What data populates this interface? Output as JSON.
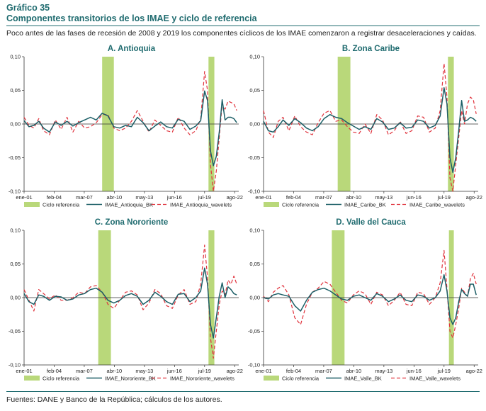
{
  "header": {
    "chart_number": "Gráfico 35",
    "title": "Componentes transitorios de los IMAE y ciclo de referencia",
    "subtitle": "Poco antes de las fases de recesión de 2008 y 2019 los componentes cíclicos de los IMAE comenzaron a registrar desaceleraciones y caídas."
  },
  "footer": {
    "source": "Fuentes: DANE y Banco de la República; cálculos de los autores."
  },
  "colors": {
    "accent": "#1f6b6f",
    "bk_line": "#1b5e66",
    "wavelets_line": "#e0323c",
    "recession_band": "#b9d87a"
  },
  "chart_data": [
    {
      "type": "line",
      "title": "A. Antioquia",
      "x_range": [
        2001,
        2023
      ],
      "xticks": [
        2001,
        2004.083,
        2007.167,
        2010.25,
        2013.333,
        2016.417,
        2019.5,
        2022.583
      ],
      "xtick_labels": [
        "ene-01",
        "feb-04",
        "mar-07",
        "abr-10",
        "may-13",
        "jun-16",
        "jul-19",
        "ago-22"
      ],
      "ylim": [
        -0.1,
        0.1
      ],
      "yticks": [
        -0.1,
        -0.05,
        0.0,
        0.05,
        0.1
      ],
      "ytick_labels": [
        "-0,10",
        "-0,05",
        "0,00",
        "0,05",
        "0,10"
      ],
      "bands": [
        [
          2009.0,
          2010.2
        ],
        [
          2019.9,
          2020.5
        ]
      ],
      "legend": [
        "Ciclo referencia",
        "IMAE_Antioquia_BK",
        "IMAE_Antioquia_wavelets"
      ],
      "series": [
        {
          "name": "IMAE_Antioquia_BK",
          "x": [
            2001.0,
            2001.5,
            2002.0,
            2002.5,
            2003.0,
            2003.6,
            2004.2,
            2004.8,
            2005.4,
            2006.0,
            2006.6,
            2007.2,
            2007.8,
            2008.4,
            2009.0,
            2009.6,
            2010.2,
            2010.8,
            2011.4,
            2012.0,
            2012.6,
            2013.2,
            2013.8,
            2014.4,
            2015.0,
            2015.6,
            2016.2,
            2016.8,
            2017.4,
            2018.0,
            2018.6,
            2019.1,
            2019.5,
            2019.8,
            2020.1,
            2020.4,
            2020.7,
            2021.0,
            2021.3,
            2021.6,
            2021.9,
            2022.2,
            2022.5,
            2022.8
          ],
          "y": [
            0.005,
            -0.004,
            -0.002,
            0.004,
            -0.006,
            -0.012,
            0.003,
            -0.002,
            0.004,
            -0.003,
            0.002,
            0.006,
            0.01,
            0.006,
            0.016,
            0.012,
            -0.004,
            -0.006,
            -0.002,
            -0.004,
            0.01,
            0.002,
            -0.01,
            -0.003,
            0.003,
            -0.004,
            -0.006,
            0.007,
            0.004,
            -0.008,
            -0.003,
            0.005,
            0.049,
            0.035,
            -0.04,
            -0.062,
            -0.048,
            -0.012,
            0.036,
            0.006,
            0.01,
            0.01,
            0.008,
            0.002
          ]
        },
        {
          "name": "IMAE_Antioquia_wavelets",
          "x": [
            2001.0,
            2001.5,
            2002.0,
            2002.5,
            2003.0,
            2003.6,
            2004.2,
            2004.8,
            2005.4,
            2006.0,
            2006.6,
            2007.2,
            2007.8,
            2008.4,
            2009.0,
            2009.6,
            2010.2,
            2010.8,
            2011.4,
            2012.0,
            2012.6,
            2013.2,
            2013.8,
            2014.4,
            2015.0,
            2015.6,
            2016.2,
            2016.8,
            2017.4,
            2018.0,
            2018.6,
            2019.1,
            2019.5,
            2019.8,
            2020.1,
            2020.4,
            2020.7,
            2021.0,
            2021.3,
            2021.6,
            2021.9,
            2022.2,
            2022.5,
            2022.8
          ],
          "y": [
            0.01,
            -0.002,
            -0.006,
            0.008,
            -0.01,
            -0.016,
            0.006,
            -0.008,
            0.01,
            -0.012,
            0.004,
            -0.006,
            -0.004,
            0.002,
            0.014,
            0.014,
            -0.006,
            -0.01,
            -0.006,
            0.004,
            0.02,
            0.004,
            -0.012,
            0.006,
            -0.002,
            -0.01,
            -0.012,
            0.01,
            -0.006,
            -0.016,
            -0.01,
            0.008,
            0.078,
            0.05,
            -0.06,
            -0.1,
            -0.07,
            -0.02,
            0.03,
            0.022,
            0.034,
            0.032,
            0.03,
            0.02
          ]
        }
      ]
    },
    {
      "type": "line",
      "title": "B. Zona Caribe",
      "x_range": [
        2001,
        2023
      ],
      "xticks": [
        2001,
        2004.083,
        2007.167,
        2010.25,
        2013.333,
        2016.417,
        2019.5,
        2022.583
      ],
      "xtick_labels": [
        "ene-01",
        "feb-04",
        "mar-07",
        "abr-10",
        "may-13",
        "jun-16",
        "jul-19",
        "ago-22"
      ],
      "ylim": [
        -0.1,
        0.1
      ],
      "yticks": [
        -0.1,
        -0.05,
        0.0,
        0.05,
        0.1
      ],
      "ytick_labels": [
        "-0,10",
        "-0,05",
        "0,00",
        "0,05",
        "0,10"
      ],
      "bands": [
        [
          2008.6,
          2009.9
        ],
        [
          2019.9,
          2020.5
        ]
      ],
      "legend": [
        "Ciclo referencia",
        "IMAE_Caribe_BK",
        "IMAE_Caribe_wavelets"
      ],
      "series": [
        {
          "name": "IMAE_Caribe_BK",
          "x": [
            2001.0,
            2001.5,
            2002.0,
            2002.5,
            2003.0,
            2003.6,
            2004.2,
            2004.8,
            2005.4,
            2006.0,
            2006.6,
            2007.2,
            2007.8,
            2008.4,
            2009.0,
            2009.6,
            2010.2,
            2010.8,
            2011.4,
            2012.0,
            2012.6,
            2013.2,
            2013.8,
            2014.4,
            2015.0,
            2015.6,
            2016.2,
            2016.8,
            2017.4,
            2018.0,
            2018.6,
            2019.1,
            2019.5,
            2019.8,
            2020.1,
            2020.4,
            2020.7,
            2021.0,
            2021.3,
            2021.6,
            2021.9,
            2022.2,
            2022.5,
            2022.8
          ],
          "y": [
            0.004,
            -0.01,
            -0.012,
            -0.004,
            0.006,
            -0.002,
            0.008,
            0.002,
            -0.006,
            -0.01,
            -0.004,
            0.008,
            0.014,
            0.01,
            0.008,
            0.002,
            -0.003,
            -0.008,
            -0.004,
            -0.008,
            0.008,
            0.003,
            -0.008,
            -0.006,
            0.002,
            -0.006,
            -0.005,
            0.006,
            0.004,
            -0.006,
            -0.002,
            0.012,
            0.054,
            0.03,
            -0.05,
            -0.072,
            -0.05,
            -0.01,
            0.035,
            0.004,
            0.006,
            0.01,
            0.008,
            0.004
          ]
        },
        {
          "name": "IMAE_Caribe_wavelets",
          "x": [
            2001.0,
            2001.5,
            2002.0,
            2002.5,
            2003.0,
            2003.6,
            2004.2,
            2004.8,
            2005.4,
            2006.0,
            2006.6,
            2007.2,
            2007.8,
            2008.4,
            2009.0,
            2009.6,
            2010.2,
            2010.8,
            2011.4,
            2012.0,
            2012.6,
            2013.2,
            2013.8,
            2014.4,
            2015.0,
            2015.6,
            2016.2,
            2016.8,
            2017.4,
            2018.0,
            2018.6,
            2019.1,
            2019.5,
            2019.8,
            2020.1,
            2020.4,
            2020.7,
            2021.0,
            2021.3,
            2021.6,
            2021.9,
            2022.2,
            2022.5,
            2022.8
          ],
          "y": [
            0.02,
            -0.012,
            -0.02,
            0.004,
            0.01,
            -0.01,
            0.012,
            -0.004,
            -0.012,
            -0.016,
            0.002,
            0.016,
            0.02,
            0.004,
            0.006,
            -0.004,
            -0.012,
            -0.014,
            0.0,
            -0.014,
            0.014,
            0.006,
            -0.016,
            -0.01,
            0.004,
            -0.014,
            -0.01,
            0.012,
            0.01,
            -0.012,
            -0.006,
            0.02,
            0.09,
            0.04,
            -0.08,
            -0.1,
            -0.06,
            -0.02,
            0.02,
            0.0,
            0.03,
            0.04,
            0.036,
            0.015
          ]
        }
      ]
    },
    {
      "type": "line",
      "title": "C. Zona Nororiente",
      "x_range": [
        2001,
        2023
      ],
      "xticks": [
        2001,
        2004.083,
        2007.167,
        2010.25,
        2013.333,
        2016.417,
        2019.5,
        2022.583
      ],
      "xtick_labels": [
        "ene-01",
        "feb-04",
        "mar-07",
        "abr-10",
        "may-13",
        "jun-16",
        "jul-19",
        "ago-22"
      ],
      "ylim": [
        -0.1,
        0.1
      ],
      "yticks": [
        -0.1,
        -0.05,
        0.0,
        0.05,
        0.1
      ],
      "ytick_labels": [
        "-0,10",
        "-0,05",
        "0,00",
        "0,05",
        "0,10"
      ],
      "bands": [
        [
          2008.6,
          2009.9
        ],
        [
          2019.9,
          2020.5
        ]
      ],
      "legend": [
        "Ciclo referencia",
        "IMAE_Nororiente_BK",
        "IMAE_Nororiente_wavelets"
      ],
      "series": [
        {
          "name": "IMAE_Nororiente_BK",
          "x": [
            2001.0,
            2001.5,
            2002.0,
            2002.5,
            2003.0,
            2003.6,
            2004.2,
            2004.8,
            2005.4,
            2006.0,
            2006.6,
            2007.2,
            2007.8,
            2008.4,
            2009.0,
            2009.6,
            2010.2,
            2010.8,
            2011.4,
            2012.0,
            2012.6,
            2013.2,
            2013.8,
            2014.4,
            2015.0,
            2015.6,
            2016.2,
            2016.8,
            2017.4,
            2018.0,
            2018.6,
            2019.1,
            2019.5,
            2019.8,
            2020.1,
            2020.4,
            2020.7,
            2021.0,
            2021.3,
            2021.6,
            2021.9,
            2022.2,
            2022.5,
            2022.8
          ],
          "y": [
            0.006,
            -0.006,
            -0.01,
            0.004,
            0.002,
            -0.004,
            0.002,
            0.001,
            -0.004,
            -0.002,
            0.004,
            0.006,
            0.012,
            0.014,
            0.008,
            -0.004,
            -0.008,
            -0.004,
            0.003,
            0.006,
            0.002,
            -0.01,
            -0.004,
            0.008,
            0.002,
            -0.006,
            -0.01,
            0.005,
            0.006,
            -0.006,
            0.0,
            0.01,
            0.044,
            0.02,
            -0.04,
            -0.06,
            -0.03,
            0.002,
            0.022,
            0.0,
            0.016,
            0.012,
            0.006,
            0.004
          ]
        },
        {
          "name": "IMAE_Nororiente_wavelets",
          "x": [
            2001.0,
            2001.5,
            2002.0,
            2002.5,
            2003.0,
            2003.6,
            2004.2,
            2004.8,
            2005.4,
            2006.0,
            2006.6,
            2007.2,
            2007.8,
            2008.4,
            2009.0,
            2009.6,
            2010.2,
            2010.8,
            2011.4,
            2012.0,
            2012.6,
            2013.2,
            2013.8,
            2014.4,
            2015.0,
            2015.6,
            2016.2,
            2016.8,
            2017.4,
            2018.0,
            2018.6,
            2019.1,
            2019.5,
            2019.8,
            2020.1,
            2020.4,
            2020.7,
            2021.0,
            2021.3,
            2021.6,
            2021.9,
            2022.2,
            2022.5,
            2022.8
          ],
          "y": [
            0.012,
            -0.004,
            -0.02,
            0.012,
            0.006,
            -0.002,
            0.004,
            -0.004,
            -0.004,
            0.0,
            0.008,
            0.006,
            0.016,
            0.018,
            0.008,
            -0.01,
            -0.016,
            -0.004,
            0.008,
            0.01,
            0.004,
            -0.018,
            -0.008,
            0.012,
            0.006,
            -0.012,
            -0.016,
            0.004,
            0.012,
            -0.01,
            -0.006,
            0.02,
            0.078,
            0.03,
            -0.06,
            -0.09,
            -0.05,
            -0.01,
            0.01,
            0.004,
            0.026,
            0.02,
            0.032,
            0.02
          ]
        }
      ]
    },
    {
      "type": "line",
      "title": "D. Valle del Cauca",
      "x_range": [
        2001,
        2023
      ],
      "xticks": [
        2001,
        2004.083,
        2007.167,
        2010.25,
        2013.333,
        2016.417,
        2019.5,
        2022.583
      ],
      "xtick_labels": [
        "ene-01",
        "feb-04",
        "mar-07",
        "abr-10",
        "may-13",
        "jun-16",
        "jul-19",
        "ago-22"
      ],
      "ylim": [
        -0.1,
        0.1
      ],
      "yticks": [
        -0.1,
        -0.05,
        0.0,
        0.05,
        0.1
      ],
      "ytick_labels": [
        "-0,10",
        "-0,05",
        "0,00",
        "0,05",
        "0,10"
      ],
      "bands": [
        [
          2008.0,
          2009.3
        ],
        [
          2020.0,
          2020.5
        ]
      ],
      "legend": [
        "Ciclo referencia",
        "IMAE_Valle_BK",
        "IMAE_Valle_wavelets"
      ],
      "series": [
        {
          "name": "IMAE_Valle_BK",
          "x": [
            2001.0,
            2001.5,
            2002.0,
            2002.5,
            2003.0,
            2003.6,
            2004.2,
            2004.8,
            2005.4,
            2006.0,
            2006.6,
            2007.2,
            2007.8,
            2008.4,
            2009.0,
            2009.6,
            2010.2,
            2010.8,
            2011.4,
            2012.0,
            2012.6,
            2013.2,
            2013.8,
            2014.4,
            2015.0,
            2015.6,
            2016.2,
            2016.8,
            2017.4,
            2018.0,
            2018.6,
            2019.1,
            2019.5,
            2019.8,
            2020.1,
            2020.4,
            2020.7,
            2021.0,
            2021.3,
            2021.6,
            2021.9,
            2022.2,
            2022.5,
            2022.8
          ],
          "y": [
            0.0,
            -0.002,
            0.004,
            0.006,
            0.004,
            0.002,
            -0.012,
            -0.02,
            -0.004,
            0.008,
            0.012,
            0.014,
            0.01,
            0.004,
            -0.002,
            -0.004,
            0.002,
            0.004,
            0.0,
            -0.004,
            0.006,
            0.002,
            -0.006,
            -0.002,
            0.004,
            -0.004,
            -0.006,
            0.004,
            0.002,
            -0.004,
            0.0,
            0.01,
            0.034,
            0.01,
            -0.03,
            -0.04,
            -0.03,
            -0.006,
            0.012,
            0.006,
            0.002,
            0.02,
            0.02,
            0.004
          ]
        },
        {
          "name": "IMAE_Valle_wavelets",
          "x": [
            2001.0,
            2001.5,
            2002.0,
            2002.5,
            2003.0,
            2003.6,
            2004.2,
            2004.8,
            2005.4,
            2006.0,
            2006.6,
            2007.2,
            2007.8,
            2008.4,
            2009.0,
            2009.6,
            2010.2,
            2010.8,
            2011.4,
            2012.0,
            2012.6,
            2013.2,
            2013.8,
            2014.4,
            2015.0,
            2015.6,
            2016.2,
            2016.8,
            2017.4,
            2018.0,
            2018.6,
            2019.1,
            2019.5,
            2019.8,
            2020.1,
            2020.4,
            2020.7,
            2021.0,
            2021.3,
            2021.6,
            2021.9,
            2022.2,
            2022.5,
            2022.8
          ],
          "y": [
            0.002,
            -0.006,
            0.008,
            0.014,
            0.018,
            0.004,
            -0.03,
            -0.04,
            -0.01,
            0.008,
            0.014,
            0.024,
            0.02,
            0.008,
            -0.004,
            -0.008,
            0.004,
            0.01,
            0.006,
            -0.01,
            0.008,
            0.004,
            -0.012,
            -0.004,
            0.008,
            -0.01,
            -0.012,
            0.008,
            0.006,
            -0.01,
            0.0,
            0.022,
            0.07,
            0.014,
            -0.05,
            -0.06,
            -0.04,
            -0.016,
            0.014,
            0.008,
            0.002,
            0.028,
            0.036,
            0.02
          ]
        }
      ]
    }
  ]
}
